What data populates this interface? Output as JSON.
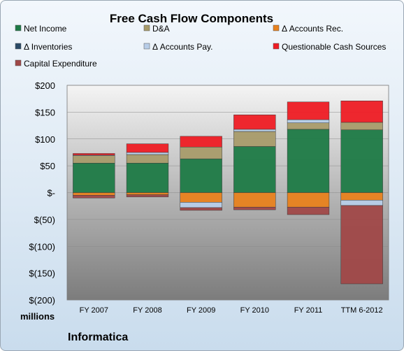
{
  "chart_data": {
    "type": "bar",
    "stacked": true,
    "title": "Free Cash Flow Components",
    "units_label": "millions",
    "company": "Informatica",
    "categories": [
      "FY 2007",
      "FY 2008",
      "FY 2009",
      "FY 2010",
      "FY 2011",
      "TTM 6-2012"
    ],
    "ylim": [
      -200,
      200
    ],
    "yticks": [
      200,
      150,
      100,
      50,
      0,
      -50,
      -100,
      -150,
      -200
    ],
    "ytick_labels": [
      "$200",
      "$150",
      "$100",
      "$50",
      "$-",
      "$(50)",
      "$(100)",
      "$(150)",
      "$(200)"
    ],
    "grid": true,
    "legend_position": "top",
    "series": [
      {
        "name": "Net Income",
        "color": "#1e7a46",
        "values": [
          55,
          55,
          63,
          86,
          118,
          117
        ]
      },
      {
        "name": "D&A",
        "color": "#a89b6a",
        "values": [
          14,
          16,
          22,
          28,
          12,
          14
        ]
      },
      {
        "name": "Δ Accounts Rec.",
        "color": "#e8821e",
        "values": [
          -5,
          -4,
          -18,
          -27,
          -27,
          -14
        ]
      },
      {
        "name": "Δ Inventories",
        "color": "#2a4a66",
        "values": [
          0,
          0,
          0,
          0,
          0,
          0
        ]
      },
      {
        "name": "Δ Accounts Pay.",
        "color": "#b7cde8",
        "values": [
          1,
          4,
          -10,
          4,
          6,
          -10
        ]
      },
      {
        "name": "Questionable Cash Sources",
        "color": "#ee1c24",
        "values": [
          3,
          16,
          20,
          27,
          33,
          40
        ]
      },
      {
        "name": "Capital Expenditure",
        "color": "#a04848",
        "values": [
          -5,
          -4,
          -5,
          -5,
          -14,
          -146
        ]
      }
    ]
  }
}
